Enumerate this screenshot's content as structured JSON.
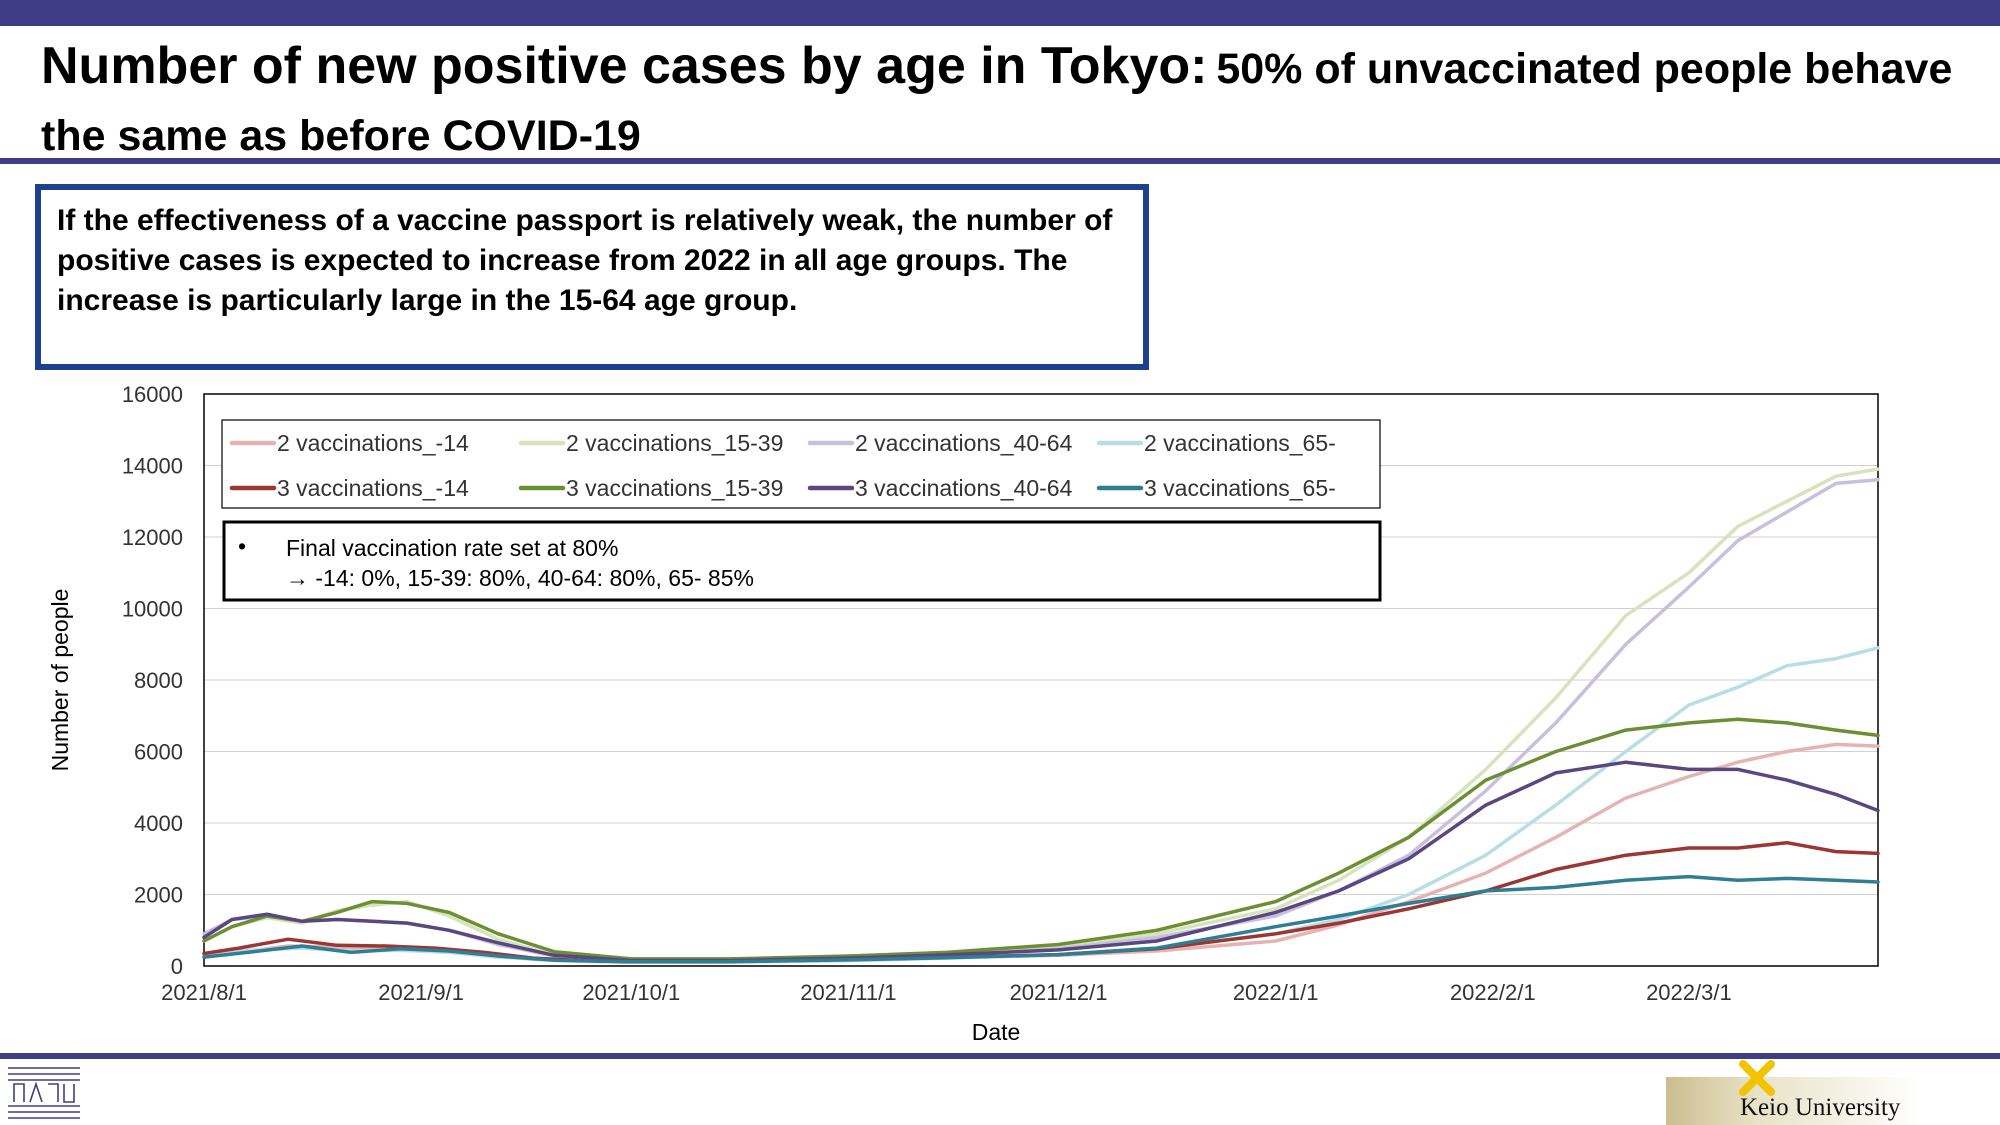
{
  "slide": {
    "title_main": "Number of new positive cases by age in Tokyo:",
    "title_sub": "50% of unvaccinated people behave the same as before COVID-19",
    "note": "If the effectiveness of a vaccine passport is relatively weak, the number of positive cases is expected to increase from 2022 in all age groups. The increase is particularly large in the 15-64 age group.",
    "footer_org": "Keio University",
    "annotation_line1": "Final vaccination rate set at 80%",
    "annotation_line2": "→ -14: 0%, 15-39: 80%, 40-64: 80%, 65- 85%"
  },
  "colors": {
    "brand_bar": "#403d87",
    "note_border": "#1f3f8f"
  },
  "chart_data": {
    "type": "line",
    "title": "",
    "xlabel": "Date",
    "ylabel": "Number of people",
    "ylim": [
      0,
      16000
    ],
    "yticks": [
      0,
      2000,
      4000,
      6000,
      8000,
      10000,
      12000,
      14000,
      16000
    ],
    "xlim": [
      "2021-08-01",
      "2022-03-28"
    ],
    "xticks": [
      {
        "date": "2021-08-01",
        "label": "2021/8/1"
      },
      {
        "date": "2021-09-01",
        "label": "2021/9/1"
      },
      {
        "date": "2021-10-01",
        "label": "2021/10/1"
      },
      {
        "date": "2021-11-01",
        "label": "2021/11/1"
      },
      {
        "date": "2021-12-01",
        "label": "2021/12/1"
      },
      {
        "date": "2022-01-01",
        "label": "2022/1/1"
      },
      {
        "date": "2022-02-01",
        "label": "2022/2/1"
      },
      {
        "date": "2022-03-01",
        "label": "2022/3/1"
      }
    ],
    "grid": "horizontal",
    "legend_placement": "top-left, inside plot, 4 columns",
    "series": [
      {
        "name": "2 vaccinations_-14",
        "color": "#e6b3b3",
        "points": [
          [
            "2021-08-01",
            280
          ],
          [
            "2021-08-06",
            380
          ],
          [
            "2021-08-13",
            560
          ],
          [
            "2021-08-20",
            530
          ],
          [
            "2021-08-27",
            480
          ],
          [
            "2021-09-03",
            440
          ],
          [
            "2021-09-10",
            320
          ],
          [
            "2021-09-17",
            190
          ],
          [
            "2021-09-24",
            130
          ],
          [
            "2021-10-01",
            110
          ],
          [
            "2021-10-15",
            120
          ],
          [
            "2021-11-01",
            170
          ],
          [
            "2021-11-15",
            230
          ],
          [
            "2021-12-01",
            300
          ],
          [
            "2021-12-15",
            420
          ],
          [
            "2022-01-01",
            700
          ],
          [
            "2022-01-10",
            1150
          ],
          [
            "2022-01-20",
            1800
          ],
          [
            "2022-01-31",
            2600
          ],
          [
            "2022-02-10",
            3600
          ],
          [
            "2022-02-20",
            4700
          ],
          [
            "2022-03-01",
            5300
          ],
          [
            "2022-03-08",
            5700
          ],
          [
            "2022-03-15",
            6000
          ],
          [
            "2022-03-22",
            6200
          ],
          [
            "2022-03-28",
            6150
          ]
        ]
      },
      {
        "name": "2 vaccinations_15-39",
        "color": "#d6e4bc",
        "points": [
          [
            "2021-08-01",
            700
          ],
          [
            "2021-08-05",
            1100
          ],
          [
            "2021-08-10",
            1350
          ],
          [
            "2021-08-15",
            1200
          ],
          [
            "2021-08-20",
            1550
          ],
          [
            "2021-08-25",
            1700
          ],
          [
            "2021-08-30",
            1800
          ],
          [
            "2021-09-05",
            1400
          ],
          [
            "2021-09-12",
            750
          ],
          [
            "2021-09-20",
            300
          ],
          [
            "2021-10-01",
            180
          ],
          [
            "2021-10-15",
            170
          ],
          [
            "2021-11-01",
            230
          ],
          [
            "2021-11-15",
            330
          ],
          [
            "2021-12-01",
            550
          ],
          [
            "2021-12-15",
            900
          ],
          [
            "2022-01-01",
            1600
          ],
          [
            "2022-01-10",
            2400
          ],
          [
            "2022-01-20",
            3600
          ],
          [
            "2022-01-31",
            5500
          ],
          [
            "2022-02-10",
            7500
          ],
          [
            "2022-02-20",
            9800
          ],
          [
            "2022-03-01",
            11000
          ],
          [
            "2022-03-08",
            12300
          ],
          [
            "2022-03-15",
            13000
          ],
          [
            "2022-03-22",
            13700
          ],
          [
            "2022-03-28",
            13900
          ]
        ]
      },
      {
        "name": "2 vaccinations_40-64",
        "color": "#c8bfdc",
        "points": [
          [
            "2021-08-01",
            900
          ],
          [
            "2021-08-05",
            1300
          ],
          [
            "2021-08-10",
            1400
          ],
          [
            "2021-08-15",
            1250
          ],
          [
            "2021-08-20",
            1300
          ],
          [
            "2021-08-25",
            1250
          ],
          [
            "2021-08-30",
            1200
          ],
          [
            "2021-09-05",
            1000
          ],
          [
            "2021-09-12",
            600
          ],
          [
            "2021-09-20",
            280
          ],
          [
            "2021-10-01",
            170
          ],
          [
            "2021-10-15",
            160
          ],
          [
            "2021-11-01",
            200
          ],
          [
            "2021-11-15",
            300
          ],
          [
            "2021-12-01",
            480
          ],
          [
            "2021-12-15",
            800
          ],
          [
            "2022-01-01",
            1400
          ],
          [
            "2022-01-10",
            2100
          ],
          [
            "2022-01-20",
            3100
          ],
          [
            "2022-01-31",
            4900
          ],
          [
            "2022-02-10",
            6800
          ],
          [
            "2022-02-20",
            9000
          ],
          [
            "2022-03-01",
            10600
          ],
          [
            "2022-03-08",
            11900
          ],
          [
            "2022-03-15",
            12700
          ],
          [
            "2022-03-22",
            13500
          ],
          [
            "2022-03-28",
            13600
          ]
        ]
      },
      {
        "name": "2 vaccinations_65-",
        "color": "#b7dde6",
        "points": [
          [
            "2021-08-01",
            300
          ],
          [
            "2021-08-08",
            450
          ],
          [
            "2021-08-15",
            500
          ],
          [
            "2021-08-22",
            420
          ],
          [
            "2021-08-29",
            440
          ],
          [
            "2021-09-05",
            380
          ],
          [
            "2021-09-12",
            250
          ],
          [
            "2021-09-20",
            160
          ],
          [
            "2021-10-01",
            110
          ],
          [
            "2021-10-15",
            110
          ],
          [
            "2021-11-01",
            150
          ],
          [
            "2021-11-15",
            220
          ],
          [
            "2021-12-01",
            320
          ],
          [
            "2021-12-15",
            500
          ],
          [
            "2022-01-01",
            900
          ],
          [
            "2022-01-10",
            1300
          ],
          [
            "2022-01-20",
            2000
          ],
          [
            "2022-01-31",
            3100
          ],
          [
            "2022-02-10",
            4500
          ],
          [
            "2022-02-20",
            6000
          ],
          [
            "2022-03-01",
            7300
          ],
          [
            "2022-03-08",
            7800
          ],
          [
            "2022-03-15",
            8400
          ],
          [
            "2022-03-22",
            8600
          ],
          [
            "2022-03-28",
            8900
          ]
        ]
      },
      {
        "name": "3 vaccinations_-14",
        "color": "#9c3633",
        "points": [
          [
            "2021-08-01",
            350
          ],
          [
            "2021-08-06",
            500
          ],
          [
            "2021-08-13",
            750
          ],
          [
            "2021-08-20",
            580
          ],
          [
            "2021-08-27",
            560
          ],
          [
            "2021-09-03",
            500
          ],
          [
            "2021-09-10",
            380
          ],
          [
            "2021-09-17",
            220
          ],
          [
            "2021-09-24",
            150
          ],
          [
            "2021-10-01",
            120
          ],
          [
            "2021-10-15",
            130
          ],
          [
            "2021-11-01",
            180
          ],
          [
            "2021-11-15",
            240
          ],
          [
            "2021-12-01",
            320
          ],
          [
            "2021-12-15",
            480
          ],
          [
            "2022-01-01",
            900
          ],
          [
            "2022-01-10",
            1200
          ],
          [
            "2022-01-20",
            1600
          ],
          [
            "2022-01-31",
            2100
          ],
          [
            "2022-02-10",
            2700
          ],
          [
            "2022-02-20",
            3100
          ],
          [
            "2022-03-01",
            3300
          ],
          [
            "2022-03-08",
            3300
          ],
          [
            "2022-03-15",
            3450
          ],
          [
            "2022-03-22",
            3200
          ],
          [
            "2022-03-28",
            3150
          ]
        ]
      },
      {
        "name": "3 vaccinations_15-39",
        "color": "#6c8f34",
        "points": [
          [
            "2021-08-01",
            700
          ],
          [
            "2021-08-05",
            1100
          ],
          [
            "2021-08-10",
            1400
          ],
          [
            "2021-08-15",
            1250
          ],
          [
            "2021-08-20",
            1500
          ],
          [
            "2021-08-25",
            1800
          ],
          [
            "2021-08-30",
            1750
          ],
          [
            "2021-09-05",
            1500
          ],
          [
            "2021-09-12",
            900
          ],
          [
            "2021-09-20",
            400
          ],
          [
            "2021-10-01",
            200
          ],
          [
            "2021-10-15",
            200
          ],
          [
            "2021-11-01",
            280
          ],
          [
            "2021-11-15",
            380
          ],
          [
            "2021-12-01",
            600
          ],
          [
            "2021-12-15",
            1000
          ],
          [
            "2022-01-01",
            1800
          ],
          [
            "2022-01-10",
            2600
          ],
          [
            "2022-01-20",
            3600
          ],
          [
            "2022-01-31",
            5200
          ],
          [
            "2022-02-10",
            6000
          ],
          [
            "2022-02-20",
            6600
          ],
          [
            "2022-03-01",
            6800
          ],
          [
            "2022-03-08",
            6900
          ],
          [
            "2022-03-15",
            6800
          ],
          [
            "2022-03-22",
            6600
          ],
          [
            "2022-03-28",
            6450
          ]
        ]
      },
      {
        "name": "3 vaccinations_40-64",
        "color": "#5a4781",
        "points": [
          [
            "2021-08-01",
            800
          ],
          [
            "2021-08-05",
            1300
          ],
          [
            "2021-08-10",
            1450
          ],
          [
            "2021-08-15",
            1250
          ],
          [
            "2021-08-20",
            1300
          ],
          [
            "2021-08-25",
            1250
          ],
          [
            "2021-08-30",
            1200
          ],
          [
            "2021-09-05",
            1000
          ],
          [
            "2021-09-12",
            650
          ],
          [
            "2021-09-20",
            300
          ],
          [
            "2021-10-01",
            150
          ],
          [
            "2021-10-15",
            150
          ],
          [
            "2021-11-01",
            220
          ],
          [
            "2021-11-15",
            310
          ],
          [
            "2021-12-01",
            450
          ],
          [
            "2021-12-15",
            700
          ],
          [
            "2022-01-01",
            1500
          ],
          [
            "2022-01-10",
            2100
          ],
          [
            "2022-01-20",
            3000
          ],
          [
            "2022-01-31",
            4500
          ],
          [
            "2022-02-10",
            5400
          ],
          [
            "2022-02-20",
            5700
          ],
          [
            "2022-03-01",
            5500
          ],
          [
            "2022-03-08",
            5500
          ],
          [
            "2022-03-15",
            5200
          ],
          [
            "2022-03-22",
            4800
          ],
          [
            "2022-03-28",
            4350
          ]
        ]
      },
      {
        "name": "3 vaccinations_65-",
        "color": "#2f7e94",
        "points": [
          [
            "2021-08-01",
            250
          ],
          [
            "2021-08-08",
            400
          ],
          [
            "2021-08-15",
            560
          ],
          [
            "2021-08-22",
            380
          ],
          [
            "2021-08-29",
            480
          ],
          [
            "2021-09-05",
            420
          ],
          [
            "2021-09-12",
            280
          ],
          [
            "2021-09-20",
            160
          ],
          [
            "2021-10-01",
            120
          ],
          [
            "2021-10-15",
            120
          ],
          [
            "2021-11-01",
            170
          ],
          [
            "2021-11-15",
            230
          ],
          [
            "2021-12-01",
            320
          ],
          [
            "2021-12-15",
            500
          ],
          [
            "2022-01-01",
            1100
          ],
          [
            "2022-01-10",
            1400
          ],
          [
            "2022-01-20",
            1750
          ],
          [
            "2022-01-31",
            2100
          ],
          [
            "2022-02-10",
            2200
          ],
          [
            "2022-02-20",
            2400
          ],
          [
            "2022-03-01",
            2500
          ],
          [
            "2022-03-08",
            2400
          ],
          [
            "2022-03-15",
            2450
          ],
          [
            "2022-03-22",
            2400
          ],
          [
            "2022-03-28",
            2350
          ]
        ]
      }
    ]
  }
}
